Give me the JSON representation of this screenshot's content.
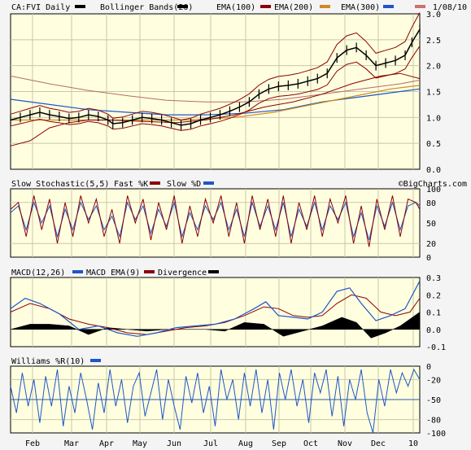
{
  "header": {
    "symbol": "CA:FVI Daily",
    "date": "1/08/10",
    "legend": [
      {
        "label": "Bollinger Bands(20)",
        "color": "#000000"
      },
      {
        "label": "EMA(100)",
        "color": "#8b0000"
      },
      {
        "label": "EMA(200)",
        "color": "#d08a20"
      },
      {
        "label": "EMA(300)",
        "color": "#1f55c8"
      },
      {
        "label": "",
        "color": "#d07070"
      }
    ]
  },
  "watermark": "©BigCharts.com",
  "months": [
    "Feb",
    "Mar",
    "Apr",
    "May",
    "Jun",
    "Jul",
    "Aug",
    "Sep",
    "Oct",
    "Nov",
    "Dec",
    "10"
  ],
  "chart_data": [
    {
      "type": "line",
      "name": "price",
      "ylim": [
        0.0,
        3.0
      ],
      "yticks": [
        "3.0",
        "2.5",
        "2.0",
        "1.5",
        "1.0",
        "0.5",
        "0.0"
      ],
      "price": [
        [
          0,
          0.95
        ],
        [
          10,
          1.0
        ],
        [
          20,
          1.05
        ],
        [
          30,
          1.1
        ],
        [
          40,
          1.05
        ],
        [
          50,
          1.02
        ],
        [
          60,
          0.98
        ],
        [
          70,
          1.0
        ],
        [
          80,
          1.05
        ],
        [
          90,
          1.02
        ],
        [
          100,
          0.95
        ],
        [
          105,
          0.88
        ],
        [
          115,
          0.9
        ],
        [
          125,
          0.95
        ],
        [
          135,
          1.0
        ],
        [
          145,
          0.98
        ],
        [
          155,
          0.95
        ],
        [
          165,
          0.9
        ],
        [
          175,
          0.85
        ],
        [
          185,
          0.88
        ],
        [
          195,
          0.95
        ],
        [
          205,
          1.0
        ],
        [
          215,
          1.05
        ],
        [
          225,
          1.12
        ],
        [
          235,
          1.2
        ],
        [
          245,
          1.3
        ],
        [
          255,
          1.45
        ],
        [
          265,
          1.55
        ],
        [
          275,
          1.6
        ],
        [
          285,
          1.62
        ],
        [
          295,
          1.65
        ],
        [
          305,
          1.7
        ],
        [
          315,
          1.75
        ],
        [
          325,
          1.85
        ],
        [
          335,
          2.15
        ],
        [
          345,
          2.3
        ],
        [
          355,
          2.35
        ],
        [
          365,
          2.2
        ],
        [
          375,
          2.0
        ],
        [
          385,
          2.05
        ],
        [
          395,
          2.1
        ],
        [
          405,
          2.2
        ],
        [
          412,
          2.45
        ],
        [
          420,
          2.7
        ]
      ],
      "ema100": [
        [
          0,
          0.45
        ],
        [
          20,
          0.55
        ],
        [
          40,
          0.8
        ],
        [
          60,
          0.9
        ],
        [
          80,
          0.95
        ],
        [
          100,
          0.95
        ],
        [
          140,
          0.92
        ],
        [
          170,
          0.9
        ],
        [
          200,
          0.95
        ],
        [
          230,
          1.05
        ],
        [
          260,
          1.2
        ],
        [
          290,
          1.3
        ],
        [
          320,
          1.45
        ],
        [
          350,
          1.65
        ],
        [
          380,
          1.8
        ],
        [
          400,
          1.85
        ],
        [
          420,
          1.75
        ]
      ],
      "ema200": [
        [
          0,
          0.95
        ],
        [
          60,
          0.95
        ],
        [
          120,
          0.95
        ],
        [
          180,
          0.95
        ],
        [
          230,
          1.0
        ],
        [
          270,
          1.1
        ],
        [
          310,
          1.25
        ],
        [
          350,
          1.4
        ],
        [
          390,
          1.55
        ],
        [
          420,
          1.62
        ]
      ],
      "ema300": [
        [
          0,
          1.35
        ],
        [
          40,
          1.25
        ],
        [
          80,
          1.15
        ],
        [
          120,
          1.1
        ],
        [
          160,
          1.05
        ],
        [
          200,
          1.05
        ],
        [
          240,
          1.08
        ],
        [
          280,
          1.15
        ],
        [
          320,
          1.3
        ],
        [
          360,
          1.4
        ],
        [
          400,
          1.5
        ],
        [
          420,
          1.55
        ]
      ],
      "ema_pink": [
        [
          0,
          1.8
        ],
        [
          40,
          1.65
        ],
        [
          80,
          1.52
        ],
        [
          120,
          1.42
        ],
        [
          160,
          1.33
        ],
        [
          200,
          1.3
        ],
        [
          240,
          1.3
        ],
        [
          280,
          1.35
        ],
        [
          320,
          1.45
        ],
        [
          360,
          1.55
        ],
        [
          400,
          1.65
        ],
        [
          420,
          1.72
        ]
      ]
    },
    {
      "type": "line",
      "name": "Slow Stochastic(5,5)",
      "ylim": [
        0,
        100
      ],
      "yticks": [
        "100",
        "80",
        "50",
        "20",
        "0"
      ],
      "fast": [
        [
          0,
          70
        ],
        [
          8,
          80
        ],
        [
          16,
          30
        ],
        [
          24,
          90
        ],
        [
          32,
          40
        ],
        [
          40,
          85
        ],
        [
          48,
          20
        ],
        [
          56,
          80
        ],
        [
          64,
          30
        ],
        [
          72,
          90
        ],
        [
          80,
          50
        ],
        [
          88,
          85
        ],
        [
          96,
          30
        ],
        [
          104,
          70
        ],
        [
          112,
          20
        ],
        [
          120,
          90
        ],
        [
          128,
          50
        ],
        [
          136,
          85
        ],
        [
          144,
          25
        ],
        [
          152,
          80
        ],
        [
          160,
          40
        ],
        [
          168,
          90
        ],
        [
          176,
          20
        ],
        [
          184,
          75
        ],
        [
          192,
          30
        ],
        [
          200,
          85
        ],
        [
          208,
          50
        ],
        [
          216,
          90
        ],
        [
          224,
          30
        ],
        [
          232,
          80
        ],
        [
          240,
          20
        ],
        [
          248,
          90
        ],
        [
          256,
          40
        ],
        [
          264,
          85
        ],
        [
          272,
          30
        ],
        [
          280,
          90
        ],
        [
          288,
          20
        ],
        [
          296,
          80
        ],
        [
          304,
          40
        ],
        [
          312,
          90
        ],
        [
          320,
          30
        ],
        [
          328,
          85
        ],
        [
          336,
          50
        ],
        [
          344,
          90
        ],
        [
          352,
          20
        ],
        [
          360,
          75
        ],
        [
          368,
          15
        ],
        [
          376,
          85
        ],
        [
          384,
          40
        ],
        [
          392,
          90
        ],
        [
          400,
          30
        ],
        [
          408,
          85
        ],
        [
          416,
          80
        ],
        [
          420,
          70
        ]
      ],
      "slow": [
        [
          0,
          65
        ],
        [
          8,
          75
        ],
        [
          16,
          40
        ],
        [
          24,
          80
        ],
        [
          32,
          50
        ],
        [
          40,
          75
        ],
        [
          48,
          30
        ],
        [
          56,
          70
        ],
        [
          64,
          40
        ],
        [
          72,
          80
        ],
        [
          80,
          55
        ],
        [
          88,
          75
        ],
        [
          96,
          40
        ],
        [
          104,
          60
        ],
        [
          112,
          30
        ],
        [
          120,
          80
        ],
        [
          128,
          55
        ],
        [
          136,
          75
        ],
        [
          144,
          35
        ],
        [
          152,
          70
        ],
        [
          160,
          45
        ],
        [
          168,
          80
        ],
        [
          176,
          30
        ],
        [
          184,
          65
        ],
        [
          192,
          40
        ],
        [
          200,
          75
        ],
        [
          208,
          55
        ],
        [
          216,
          80
        ],
        [
          224,
          40
        ],
        [
          232,
          70
        ],
        [
          240,
          30
        ],
        [
          248,
          80
        ],
        [
          256,
          45
        ],
        [
          264,
          75
        ],
        [
          272,
          40
        ],
        [
          280,
          80
        ],
        [
          288,
          30
        ],
        [
          296,
          70
        ],
        [
          304,
          45
        ],
        [
          312,
          80
        ],
        [
          320,
          40
        ],
        [
          328,
          75
        ],
        [
          336,
          55
        ],
        [
          344,
          80
        ],
        [
          352,
          30
        ],
        [
          360,
          65
        ],
        [
          368,
          25
        ],
        [
          376,
          75
        ],
        [
          384,
          45
        ],
        [
          392,
          80
        ],
        [
          400,
          40
        ],
        [
          408,
          75
        ],
        [
          416,
          80
        ],
        [
          420,
          75
        ]
      ]
    },
    {
      "type": "line",
      "name": "MACD(12,26)",
      "ylim": [
        -0.1,
        0.3
      ],
      "yticks": [
        "0.3",
        "0.2",
        "0.1",
        "0.0",
        "-0.1"
      ],
      "macd": [
        [
          0,
          0.12
        ],
        [
          15,
          0.18
        ],
        [
          30,
          0.15
        ],
        [
          50,
          0.09
        ],
        [
          70,
          0.0
        ],
        [
          90,
          0.02
        ],
        [
          110,
          -0.02
        ],
        [
          130,
          -0.04
        ],
        [
          150,
          -0.02
        ],
        [
          170,
          0.01
        ],
        [
          190,
          0.02
        ],
        [
          210,
          0.03
        ],
        [
          230,
          0.06
        ],
        [
          250,
          0.12
        ],
        [
          262,
          0.16
        ],
        [
          275,
          0.08
        ],
        [
          290,
          0.07
        ],
        [
          305,
          0.06
        ],
        [
          320,
          0.1
        ],
        [
          335,
          0.22
        ],
        [
          348,
          0.24
        ],
        [
          360,
          0.15
        ],
        [
          375,
          0.05
        ],
        [
          390,
          0.08
        ],
        [
          405,
          0.12
        ],
        [
          420,
          0.28
        ]
      ],
      "signal": [
        [
          0,
          0.1
        ],
        [
          20,
          0.15
        ],
        [
          40,
          0.12
        ],
        [
          60,
          0.06
        ],
        [
          80,
          0.03
        ],
        [
          100,
          0.01
        ],
        [
          120,
          -0.02
        ],
        [
          140,
          -0.03
        ],
        [
          160,
          -0.01
        ],
        [
          180,
          0.01
        ],
        [
          200,
          0.02
        ],
        [
          220,
          0.04
        ],
        [
          240,
          0.08
        ],
        [
          260,
          0.13
        ],
        [
          275,
          0.12
        ],
        [
          290,
          0.08
        ],
        [
          305,
          0.07
        ],
        [
          320,
          0.08
        ],
        [
          335,
          0.15
        ],
        [
          350,
          0.2
        ],
        [
          365,
          0.18
        ],
        [
          380,
          0.1
        ],
        [
          395,
          0.08
        ],
        [
          410,
          0.1
        ],
        [
          420,
          0.18
        ]
      ],
      "divergence": [
        [
          0,
          0.0
        ],
        [
          20,
          0.03
        ],
        [
          40,
          0.03
        ],
        [
          60,
          0.02
        ],
        [
          80,
          -0.03
        ],
        [
          100,
          0.01
        ],
        [
          120,
          0.0
        ],
        [
          140,
          -0.01
        ],
        [
          160,
          0.0
        ],
        [
          180,
          0.0
        ],
        [
          200,
          0.0
        ],
        [
          220,
          -0.01
        ],
        [
          240,
          0.04
        ],
        [
          260,
          0.03
        ],
        [
          280,
          -0.04
        ],
        [
          300,
          -0.01
        ],
        [
          320,
          0.02
        ],
        [
          340,
          0.07
        ],
        [
          355,
          0.04
        ],
        [
          370,
          -0.05
        ],
        [
          385,
          -0.02
        ],
        [
          400,
          0.02
        ],
        [
          420,
          0.1
        ]
      ]
    },
    {
      "type": "line",
      "name": "Williams %R(10)",
      "ylim": [
        -100,
        0
      ],
      "yticks": [
        "0",
        "-20",
        "-50",
        "-80",
        "-100"
      ],
      "ref_level": -50,
      "values": [
        [
          0,
          -30
        ],
        [
          6,
          -70
        ],
        [
          12,
          -10
        ],
        [
          18,
          -60
        ],
        [
          24,
          -20
        ],
        [
          30,
          -85
        ],
        [
          36,
          -15
        ],
        [
          42,
          -60
        ],
        [
          48,
          -5
        ],
        [
          54,
          -90
        ],
        [
          60,
          -30
        ],
        [
          66,
          -70
        ],
        [
          72,
          -10
        ],
        [
          78,
          -50
        ],
        [
          84,
          -95
        ],
        [
          90,
          -25
        ],
        [
          96,
          -70
        ],
        [
          102,
          -5
        ],
        [
          108,
          -60
        ],
        [
          114,
          -20
        ],
        [
          120,
          -85
        ],
        [
          126,
          -30
        ],
        [
          132,
          -10
        ],
        [
          138,
          -75
        ],
        [
          144,
          -40
        ],
        [
          150,
          -5
        ],
        [
          156,
          -80
        ],
        [
          162,
          -20
        ],
        [
          168,
          -60
        ],
        [
          174,
          -95
        ],
        [
          180,
          -15
        ],
        [
          186,
          -55
        ],
        [
          192,
          -10
        ],
        [
          198,
          -70
        ],
        [
          204,
          -30
        ],
        [
          210,
          -90
        ],
        [
          216,
          -5
        ],
        [
          222,
          -50
        ],
        [
          228,
          -20
        ],
        [
          234,
          -80
        ],
        [
          240,
          -10
        ],
        [
          246,
          -60
        ],
        [
          252,
          -5
        ],
        [
          258,
          -70
        ],
        [
          264,
          -20
        ],
        [
          270,
          -95
        ],
        [
          276,
          -10
        ],
        [
          282,
          -50
        ],
        [
          288,
          -5
        ],
        [
          294,
          -60
        ],
        [
          300,
          -20
        ],
        [
          306,
          -85
        ],
        [
          312,
          -10
        ],
        [
          318,
          -40
        ],
        [
          324,
          -5
        ],
        [
          330,
          -75
        ],
        [
          336,
          -15
        ],
        [
          342,
          -90
        ],
        [
          348,
          -20
        ],
        [
          354,
          -50
        ],
        [
          360,
          -5
        ],
        [
          366,
          -70
        ],
        [
          372,
          -100
        ],
        [
          378,
          -20
        ],
        [
          384,
          -60
        ],
        [
          390,
          -5
        ],
        [
          396,
          -40
        ],
        [
          402,
          -10
        ],
        [
          408,
          -30
        ],
        [
          414,
          -5
        ],
        [
          420,
          -20
        ]
      ]
    }
  ]
}
